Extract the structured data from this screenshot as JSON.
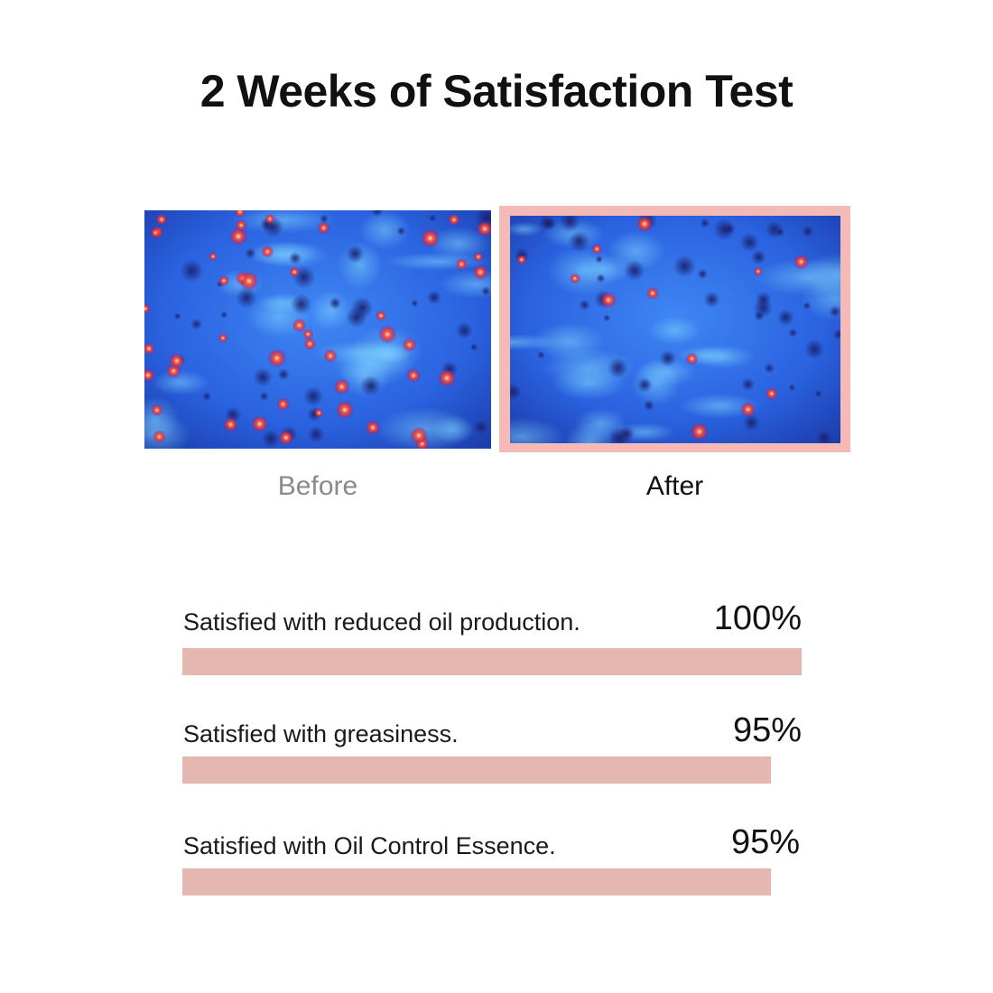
{
  "title": "2 Weeks of Satisfaction Test",
  "photos": {
    "before": {
      "caption": "Before"
    },
    "after": {
      "caption": "After",
      "frame_color": "#f5b9b6"
    }
  },
  "bar_color": "#e6b6b1",
  "stats": [
    {
      "label": "Satisfied with reduced oil production.",
      "value_text": "100%",
      "value": 100
    },
    {
      "label": "Satisfied with greasiness.",
      "value_text": "95%",
      "value": 95
    },
    {
      "label": "Satisfied with Oil Control Essence.",
      "value_text": "95%",
      "value": 95
    }
  ]
}
